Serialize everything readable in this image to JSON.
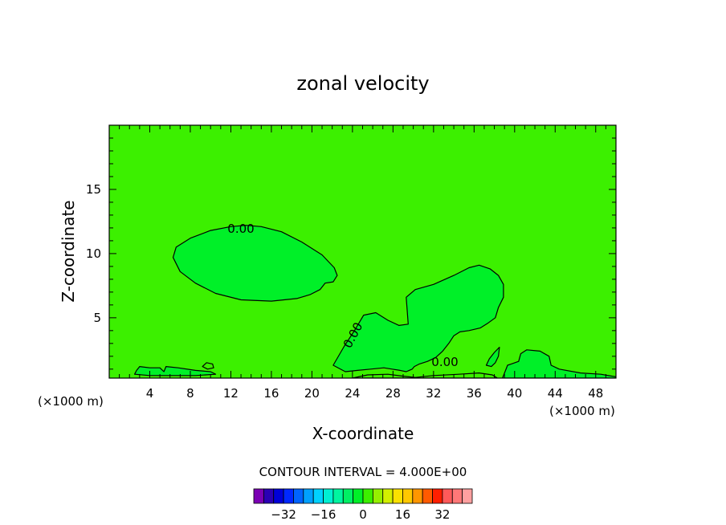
{
  "chart_data": {
    "type": "contour",
    "title": "zonal velocity",
    "xlabel": "X-coordinate",
    "ylabel": "Z-coordinate",
    "x_unit_left": "(×1000 m)",
    "x_unit_right": "(×1000 m)",
    "xlim": [
      0,
      50
    ],
    "ylim": [
      0.3,
      20
    ],
    "x_ticks": [
      4,
      8,
      12,
      16,
      20,
      24,
      28,
      32,
      36,
      40,
      44,
      48
    ],
    "y_ticks": [
      5,
      10,
      15
    ],
    "contour_interval_text": "CONTOUR INTERVAL = 4.000E+00",
    "contour_labels": [
      "0.00",
      "0.00",
      "0.00"
    ],
    "colorbar": {
      "tick_labels": [
        "−32",
        "−16",
        "0",
        "16",
        "32"
      ],
      "tick_values": [
        -32,
        -16,
        0,
        16,
        32
      ],
      "colors": [
        "#7b00b4",
        "#2b00b4",
        "#0000d8",
        "#0028ff",
        "#0064ff",
        "#00a0ff",
        "#00d2ff",
        "#00f0d2",
        "#00f5a0",
        "#00f064",
        "#00f028",
        "#3cf000",
        "#96f000",
        "#d2f000",
        "#fae100",
        "#ffc800",
        "#ff9600",
        "#ff5a00",
        "#ff1e00",
        "#ff5a5a",
        "#ff7878",
        "#ffa0a0"
      ]
    },
    "regions": [
      {
        "value_band": [
          -4,
          0
        ],
        "color": "#00f028",
        "outline": [
          [
            6.3,
            9.7
          ],
          [
            6.6,
            10.5
          ],
          [
            8,
            11.2
          ],
          [
            10,
            11.8
          ],
          [
            12,
            12.1
          ],
          [
            13.5,
            12.2
          ],
          [
            15,
            12.1
          ],
          [
            17,
            11.7
          ],
          [
            19,
            10.9
          ],
          [
            21,
            9.9
          ],
          [
            22.2,
            8.9
          ],
          [
            22.5,
            8.3
          ],
          [
            22.1,
            7.8
          ],
          [
            21.3,
            7.7
          ],
          [
            20.8,
            7.2
          ],
          [
            19.8,
            6.8
          ],
          [
            18.5,
            6.5
          ],
          [
            16,
            6.3
          ],
          [
            13,
            6.4
          ],
          [
            10.5,
            6.9
          ],
          [
            8.5,
            7.7
          ],
          [
            7,
            8.6
          ]
        ]
      },
      {
        "value_band": [
          -4,
          0
        ],
        "color": "#00f028",
        "outline": [
          [
            22.1,
            1.3
          ],
          [
            23.2,
            2.8
          ],
          [
            24.2,
            4
          ],
          [
            25.1,
            5.2
          ],
          [
            26.3,
            5.4
          ],
          [
            27.5,
            4.8
          ],
          [
            28.6,
            4.4
          ],
          [
            29.5,
            4.5
          ],
          [
            29.4,
            5.6
          ],
          [
            29.3,
            6.6
          ],
          [
            30.2,
            7.2
          ],
          [
            32,
            7.6
          ],
          [
            34,
            8.3
          ],
          [
            35.5,
            8.9
          ],
          [
            36.5,
            9.1
          ],
          [
            37.6,
            8.8
          ],
          [
            38.4,
            8.3
          ],
          [
            38.9,
            7.6
          ],
          [
            38.9,
            6.6
          ],
          [
            38.4,
            5.8
          ],
          [
            38.1,
            5
          ],
          [
            37.4,
            4.6
          ],
          [
            36.6,
            4.2
          ],
          [
            35.5,
            4
          ],
          [
            34.6,
            3.9
          ],
          [
            34,
            3.6
          ],
          [
            33.5,
            3
          ],
          [
            32.9,
            2.4
          ],
          [
            32.2,
            1.9
          ],
          [
            31.4,
            1.6
          ],
          [
            30.6,
            1.4
          ],
          [
            30.1,
            1.2
          ],
          [
            29.9,
            1
          ],
          [
            29.3,
            0.8
          ],
          [
            28.7,
            0.9
          ],
          [
            27.9,
            1
          ],
          [
            27.1,
            1.1
          ],
          [
            25.8,
            1
          ],
          [
            24.5,
            0.9
          ],
          [
            23.3,
            0.8
          ]
        ]
      },
      {
        "value_band": [
          -4,
          0
        ],
        "color": "#00f028",
        "outline": [
          [
            38.8,
            0.3
          ],
          [
            39.3,
            1.3
          ],
          [
            40.4,
            1.6
          ],
          [
            40.6,
            2.2
          ],
          [
            41.2,
            2.5
          ],
          [
            42.5,
            2.4
          ],
          [
            43.4,
            2
          ],
          [
            43.6,
            1.3
          ],
          [
            44.4,
            1
          ],
          [
            46.5,
            0.7
          ],
          [
            48.5,
            0.6
          ],
          [
            50,
            0.4
          ],
          [
            50,
            0.3
          ]
        ]
      },
      {
        "value_band": [
          -4,
          0
        ],
        "color": "#00f028",
        "outline": [
          [
            37.2,
            1.3
          ],
          [
            37.5,
            1.8
          ],
          [
            38,
            2.3
          ],
          [
            38.5,
            2.7
          ],
          [
            38.4,
            2
          ],
          [
            38.1,
            1.5
          ],
          [
            37.7,
            1.2
          ]
        ]
      },
      {
        "value_band": [
          -4,
          0
        ],
        "color": "#00f028",
        "outline": [
          [
            2.5,
            0.6
          ],
          [
            2.7,
            0.9
          ],
          [
            3,
            1.2
          ],
          [
            4,
            1.1
          ],
          [
            5,
            1.1
          ],
          [
            5.4,
            0.8
          ],
          [
            5.6,
            1.2
          ],
          [
            6.8,
            1.1
          ],
          [
            8.5,
            0.9
          ],
          [
            10,
            0.8
          ],
          [
            10.5,
            0.6
          ],
          [
            8.5,
            0.5
          ],
          [
            6,
            0.5
          ],
          [
            4,
            0.5
          ]
        ]
      },
      {
        "value_band": [
          0,
          4
        ],
        "color": "#3cf000",
        "outline": [
          [
            24,
            0.3
          ],
          [
            25.5,
            0.55
          ],
          [
            27.5,
            0.6
          ],
          [
            29,
            0.45
          ],
          [
            30.2,
            0.35
          ],
          [
            32,
            0.5
          ],
          [
            34.5,
            0.6
          ],
          [
            36.5,
            0.7
          ],
          [
            37.8,
            0.55
          ],
          [
            38.3,
            0.3
          ]
        ]
      },
      {
        "value_band": [
          0,
          4
        ],
        "color": "#3cf000",
        "outline": [
          [
            9.2,
            1.2
          ],
          [
            9.6,
            1.5
          ],
          [
            10.2,
            1.4
          ],
          [
            10.3,
            1.1
          ],
          [
            9.7,
            1
          ]
        ]
      }
    ]
  }
}
